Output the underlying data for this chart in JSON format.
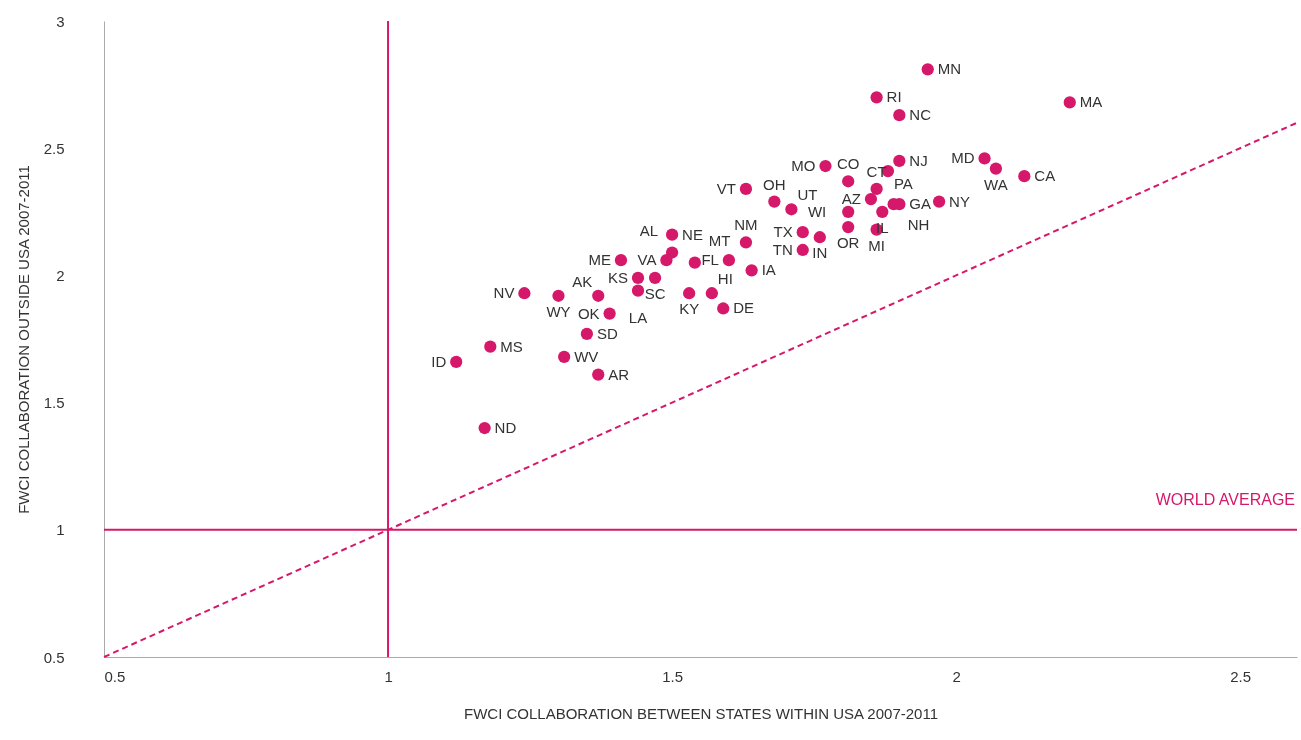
{
  "chart_data": {
    "type": "scatter",
    "xlabel": "FWCI COLLABORATION BETWEEN STATES WITHIN USA 2007-2011",
    "ylabel": "FWCI COLLABORATION OUTSIDE USA 2007-2011",
    "xlim": [
      0.5,
      2.6
    ],
    "xticks": [
      0.5,
      1,
      1.5,
      2,
      2.5
    ],
    "ylim": [
      0.5,
      3
    ],
    "yticks": [
      0.5,
      1,
      1.5,
      2,
      2.5,
      3
    ],
    "grid": false,
    "marker": "circle",
    "series": [
      {
        "color": "#d6186a",
        "x": [
          1.95,
          1.86,
          1.9,
          2.2,
          2.05,
          2.07,
          2.12,
          1.9,
          1.88,
          1.77,
          1.81,
          1.86,
          1.85,
          1.89,
          1.9,
          1.97,
          1.81,
          1.87,
          1.81,
          1.86,
          1.63,
          1.68,
          1.71,
          1.73,
          1.76,
          1.73,
          1.64,
          1.5,
          1.5,
          1.49,
          1.41,
          1.54,
          1.63,
          1.6,
          1.47,
          1.44,
          1.44,
          1.37,
          1.3,
          1.24,
          1.53,
          1.57,
          1.59,
          1.39,
          1.18,
          1.12,
          1.35,
          1.31,
          1.37,
          1.17
        ],
        "values": [
          2.81,
          2.7,
          2.63,
          2.68,
          2.46,
          2.42,
          2.39,
          2.45,
          2.41,
          2.43,
          2.37,
          2.34,
          2.3,
          2.28,
          2.28,
          2.29,
          2.25,
          2.25,
          2.19,
          2.18,
          2.34,
          2.29,
          2.26,
          2.17,
          2.15,
          2.1,
          2.02,
          2.16,
          2.09,
          2.06,
          2.06,
          2.05,
          2.13,
          2.06,
          1.99,
          1.99,
          1.94,
          1.92,
          1.92,
          1.93,
          1.93,
          1.93,
          1.87,
          1.85,
          1.72,
          1.66,
          1.77,
          1.68,
          1.61,
          1.4
        ],
        "value_labels": [
          "MN",
          "RI",
          "NC",
          "MA",
          "MD",
          "WA",
          "CA",
          "NJ",
          "PA",
          "MO",
          "CO",
          "CT",
          "AZ",
          "NH",
          "GA",
          "NY",
          "WI",
          "IL",
          "OR",
          "MI",
          "VT",
          "OH",
          "UT",
          "TX",
          "IN",
          "TN",
          "IA",
          "NE",
          "AL",
          "VA",
          "ME",
          "MT",
          "NM",
          "FL",
          "SC",
          "KS",
          "LA",
          "AK",
          "WY",
          "NV",
          "KY",
          "HI",
          "DE",
          "OK",
          "MS",
          "ID",
          "SD",
          "WV",
          "AR",
          "ND"
        ]
      },
      {
        "type": "line",
        "color": "#d6186a",
        "line_style": "dashed",
        "marker": "none",
        "x": [
          0.5,
          2.6
        ],
        "values": [
          0.5,
          2.6
        ]
      }
    ],
    "ref_lines": [
      {
        "axis": "x",
        "value": 1,
        "color": "#d6186a"
      },
      {
        "axis": "y",
        "value": 1,
        "label": "WORLD AVERAGE",
        "color": "#d6186a"
      }
    ]
  }
}
